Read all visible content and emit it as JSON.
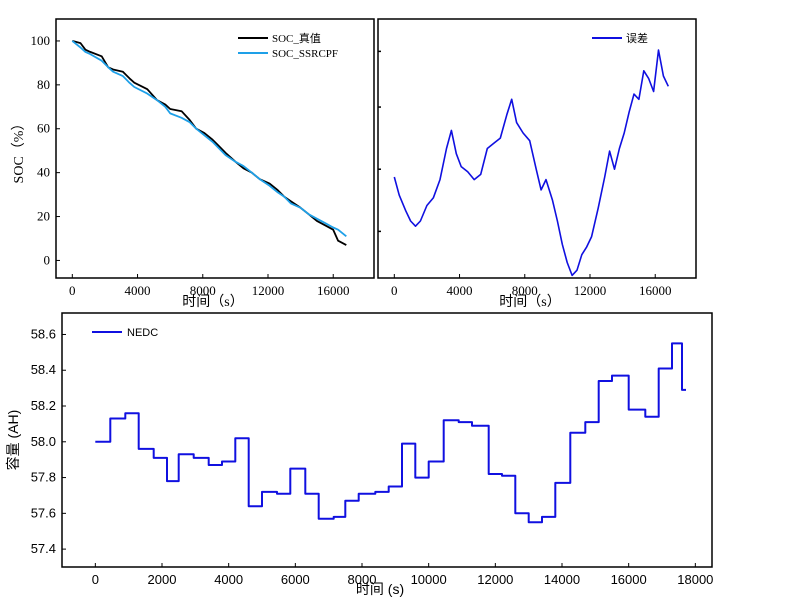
{
  "chart_data": [
    {
      "type": "line",
      "xlabel": "时间（s）",
      "ylabel": "SOC（%）",
      "xlim": [
        -1000,
        18500
      ],
      "ylim": [
        -8,
        110
      ],
      "x_ticks": [
        0,
        4000,
        8000,
        12000,
        16000
      ],
      "x_tick_labels": [
        "0",
        "4000",
        "8000",
        "12000",
        "16000"
      ],
      "y_ticks": [
        0,
        20,
        40,
        60,
        80,
        100
      ],
      "y_tick_labels": [
        "0",
        "20",
        "40",
        "60",
        "80",
        "100"
      ],
      "legend": "top-right",
      "series": [
        {
          "name": "SOC_真值",
          "color": "#000000",
          "x": [
            0,
            500,
            800,
            1100,
            1800,
            2200,
            2500,
            3100,
            3500,
            3800,
            4600,
            5200,
            5700,
            6000,
            6700,
            7200,
            7600,
            8100,
            8600,
            9000,
            9400,
            10000,
            10500,
            11000,
            11500,
            12100,
            12600,
            13000,
            13400,
            14000,
            14500,
            15000,
            15500,
            16000,
            16300,
            16800
          ],
          "y": [
            100,
            99,
            96,
            95,
            93,
            88,
            87,
            86,
            83,
            81,
            78,
            73,
            71,
            69,
            68,
            64,
            60,
            58,
            55,
            52,
            49,
            45,
            42,
            40,
            37,
            35,
            32,
            29,
            27,
            24,
            21,
            18,
            16,
            14,
            9,
            7
          ]
        },
        {
          "name": "SOC_SSRCPF",
          "color": "#1ea0e8",
          "x": [
            0,
            500,
            800,
            1100,
            1800,
            2200,
            2500,
            3100,
            3500,
            3800,
            4600,
            5200,
            5700,
            6000,
            6700,
            7200,
            7600,
            8100,
            8600,
            9000,
            9400,
            10000,
            10500,
            11000,
            11500,
            12100,
            12600,
            13000,
            13400,
            14000,
            14500,
            15000,
            15500,
            16000,
            16300,
            16800
          ],
          "y": [
            100,
            97,
            95,
            94,
            91,
            88,
            86,
            84,
            81,
            79,
            76,
            73,
            70,
            67,
            65,
            63,
            60,
            57,
            54,
            51,
            48,
            45,
            43,
            40,
            37,
            34,
            31,
            29,
            26,
            24,
            21,
            19,
            17,
            15,
            14,
            11
          ]
        }
      ]
    },
    {
      "type": "line",
      "xlabel": "时间（s）",
      "xlim": [
        -1000,
        18500
      ],
      "ylim": [
        0,
        1
      ],
      "x_ticks": [
        0,
        4000,
        8000,
        12000,
        16000
      ],
      "x_tick_labels": [
        "0",
        "4000",
        "8000",
        "12000",
        "16000"
      ],
      "legend": "top-right",
      "series": [
        {
          "name": "误差",
          "color": "#1010e0",
          "x": [
            0,
            300,
            700,
            1000,
            1300,
            1600,
            2000,
            2400,
            2800,
            3200,
            3500,
            3800,
            4100,
            4500,
            4900,
            5300,
            5700,
            6100,
            6500,
            6900,
            7200,
            7500,
            7900,
            8300,
            8700,
            9000,
            9300,
            9700,
            10000,
            10300,
            10600,
            10900,
            11200,
            11500,
            11800,
            12100,
            12500,
            12900,
            13200,
            13500,
            13800,
            14100,
            14400,
            14700,
            15000,
            15300,
            15600,
            15900,
            16200,
            16500,
            16800
          ],
          "y": [
            0.39,
            0.32,
            0.26,
            0.22,
            0.2,
            0.22,
            0.28,
            0.31,
            0.38,
            0.5,
            0.57,
            0.48,
            0.43,
            0.41,
            0.38,
            0.4,
            0.5,
            0.52,
            0.54,
            0.63,
            0.69,
            0.6,
            0.56,
            0.53,
            0.42,
            0.34,
            0.38,
            0.3,
            0.22,
            0.13,
            0.06,
            0.01,
            0.03,
            0.09,
            0.12,
            0.16,
            0.27,
            0.39,
            0.49,
            0.42,
            0.5,
            0.56,
            0.64,
            0.71,
            0.69,
            0.8,
            0.77,
            0.72,
            0.88,
            0.78,
            0.74
          ]
        }
      ]
    },
    {
      "type": "line",
      "xlabel": "时间 (s)",
      "ylabel": "容量 (AH)",
      "xlim": [
        -1000,
        18500
      ],
      "ylim": [
        57.3,
        58.72
      ],
      "x_ticks": [
        0,
        2000,
        4000,
        6000,
        8000,
        10000,
        12000,
        14000,
        16000,
        18000
      ],
      "x_tick_labels": [
        "0",
        "2000",
        "4000",
        "6000",
        "8000",
        "10000",
        "12000",
        "14000",
        "16000",
        "18000"
      ],
      "y_ticks": [
        57.4,
        57.6,
        57.8,
        58.0,
        58.2,
        58.4,
        58.6
      ],
      "y_tick_labels": [
        "57.4",
        "57.6",
        "57.8",
        "58.0",
        "58.2",
        "58.4",
        "58.6"
      ],
      "legend": "top-left",
      "series": [
        {
          "name": "NEDC",
          "color": "#1010e0",
          "x": [
            0,
            450,
            900,
            1300,
            1750,
            2150,
            2500,
            2950,
            3400,
            3800,
            4200,
            4600,
            5000,
            5450,
            5850,
            6300,
            6700,
            7150,
            7500,
            7900,
            8400,
            8800,
            9200,
            9600,
            10000,
            10450,
            10900,
            11300,
            11800,
            12200,
            12600,
            13000,
            13400,
            13800,
            14250,
            14700,
            15100,
            15500,
            16000,
            16500,
            16900,
            17300,
            17600
          ],
          "y": [
            58.0,
            58.13,
            58.16,
            57.96,
            57.91,
            57.78,
            57.93,
            57.91,
            57.87,
            57.89,
            58.02,
            57.64,
            57.72,
            57.71,
            57.85,
            57.71,
            57.57,
            57.58,
            57.67,
            57.71,
            57.72,
            57.75,
            57.99,
            57.8,
            57.89,
            58.12,
            58.11,
            58.09,
            57.82,
            57.81,
            57.6,
            57.55,
            57.58,
            57.77,
            58.05,
            58.11,
            58.34,
            58.37,
            58.18,
            58.14,
            58.41,
            58.55,
            58.29
          ]
        }
      ]
    }
  ],
  "labels": {
    "top_left_xlabel": "时间（s）",
    "top_left_ylabel": "SOC（%）",
    "top_right_xlabel": "时间（s）",
    "bottom_xlabel": "时间 (s)",
    "bottom_ylabel": "容量 (AH)",
    "legend_truth": "SOC_真值",
    "legend_ssrcpf": "SOC_SSRCPF",
    "legend_error": "误差",
    "legend_nedc": "NEDC"
  }
}
